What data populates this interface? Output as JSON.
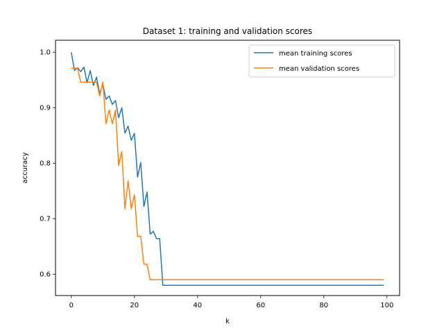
{
  "chart_data": {
    "type": "line",
    "title": "Dataset 1: training and validation scores",
    "xlabel": "k",
    "ylabel": "accuracy",
    "xlim": [
      -5,
      104
    ],
    "ylim": [
      0.5615,
      1.0215
    ],
    "xticks": [
      0,
      20,
      40,
      60,
      80,
      100
    ],
    "yticks": [
      0.6,
      0.7,
      0.8,
      0.9,
      1.0
    ],
    "xtick_labels": [
      "0",
      "20",
      "40",
      "60",
      "80",
      "100"
    ],
    "ytick_labels": [
      "0.6",
      "0.7",
      "0.8",
      "0.9",
      "1.0"
    ],
    "legend_position": "top-right",
    "grid": false,
    "x": [
      0,
      1,
      2,
      3,
      4,
      5,
      6,
      7,
      8,
      9,
      10,
      11,
      12,
      13,
      14,
      15,
      16,
      17,
      18,
      19,
      20,
      21,
      22,
      23,
      24,
      25,
      26,
      27,
      28,
      29,
      30,
      31,
      32,
      33,
      34,
      35,
      36,
      37,
      38,
      39,
      40,
      41,
      42,
      43,
      44,
      45,
      46,
      47,
      48,
      49,
      50,
      51,
      52,
      53,
      54,
      55,
      56,
      57,
      58,
      59,
      60,
      61,
      62,
      63,
      64,
      65,
      66,
      67,
      68,
      69,
      70,
      71,
      72,
      73,
      74,
      75,
      76,
      77,
      78,
      79,
      80,
      81,
      82,
      83,
      84,
      85,
      86,
      87,
      88,
      89,
      90,
      91,
      92,
      93,
      94,
      95,
      96,
      97,
      98,
      99
    ],
    "series": [
      {
        "name": "mean training scores",
        "color": "#1f77b4",
        "values": [
          1.0,
          0.967,
          0.972,
          0.965,
          0.973,
          0.945,
          0.967,
          0.94,
          0.955,
          0.925,
          0.942,
          0.915,
          0.921,
          0.906,
          0.913,
          0.882,
          0.9,
          0.854,
          0.867,
          0.841,
          0.854,
          0.775,
          0.801,
          0.722,
          0.748,
          0.672,
          0.677,
          0.664,
          0.664,
          0.58,
          0.58,
          0.58,
          0.58,
          0.58,
          0.58,
          0.58,
          0.58,
          0.58,
          0.58,
          0.58,
          0.58,
          0.58,
          0.58,
          0.58,
          0.58,
          0.58,
          0.58,
          0.58,
          0.58,
          0.58,
          0.58,
          0.58,
          0.58,
          0.58,
          0.58,
          0.58,
          0.58,
          0.58,
          0.58,
          0.58,
          0.58,
          0.58,
          0.58,
          0.58,
          0.58,
          0.58,
          0.58,
          0.58,
          0.58,
          0.58,
          0.58,
          0.58,
          0.58,
          0.58,
          0.58,
          0.58,
          0.58,
          0.58,
          0.58,
          0.58,
          0.58,
          0.58,
          0.58,
          0.58,
          0.58,
          0.58,
          0.58,
          0.58,
          0.58,
          0.58,
          0.58,
          0.58,
          0.58,
          0.58,
          0.58,
          0.58,
          0.58,
          0.58,
          0.58,
          0.58
        ]
      },
      {
        "name": "mean validation scores",
        "color": "#ff7f0e",
        "values": [
          0.971,
          0.971,
          0.971,
          0.946,
          0.946,
          0.946,
          0.946,
          0.946,
          0.946,
          0.921,
          0.946,
          0.871,
          0.896,
          0.871,
          0.896,
          0.796,
          0.821,
          0.718,
          0.768,
          0.718,
          0.743,
          0.668,
          0.668,
          0.618,
          0.618,
          0.59,
          0.59,
          0.59,
          0.59,
          0.59,
          0.59,
          0.59,
          0.59,
          0.59,
          0.59,
          0.59,
          0.59,
          0.59,
          0.59,
          0.59,
          0.59,
          0.59,
          0.59,
          0.59,
          0.59,
          0.59,
          0.59,
          0.59,
          0.59,
          0.59,
          0.59,
          0.59,
          0.59,
          0.59,
          0.59,
          0.59,
          0.59,
          0.59,
          0.59,
          0.59,
          0.59,
          0.59,
          0.59,
          0.59,
          0.59,
          0.59,
          0.59,
          0.59,
          0.59,
          0.59,
          0.59,
          0.59,
          0.59,
          0.59,
          0.59,
          0.59,
          0.59,
          0.59,
          0.59,
          0.59,
          0.59,
          0.59,
          0.59,
          0.59,
          0.59,
          0.59,
          0.59,
          0.59,
          0.59,
          0.59,
          0.59,
          0.59,
          0.59,
          0.59,
          0.59,
          0.59,
          0.59,
          0.59,
          0.59,
          0.59
        ]
      }
    ]
  }
}
